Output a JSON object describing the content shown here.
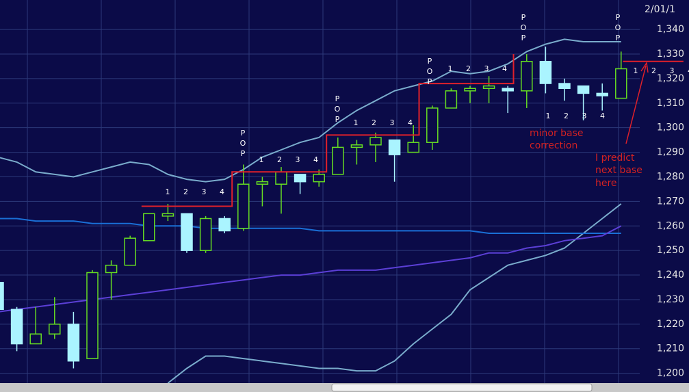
{
  "chart_data": {
    "type": "candlestick",
    "date_label": "2/01/1",
    "ylim": [
      1196,
      1352
    ],
    "yticks": [
      {
        "value": 1200,
        "label": "1,200"
      },
      {
        "value": 1210,
        "label": "1,210"
      },
      {
        "value": 1220,
        "label": "1,220"
      },
      {
        "value": 1230,
        "label": "1,230"
      },
      {
        "value": 1240,
        "label": "1,240"
      },
      {
        "value": 1250,
        "label": "1,250"
      },
      {
        "value": 1260,
        "label": "1,260"
      },
      {
        "value": 1270,
        "label": "1,270"
      },
      {
        "value": 1280,
        "label": "1,280"
      },
      {
        "value": 1290,
        "label": "1,290"
      },
      {
        "value": 1300,
        "label": "1,300"
      },
      {
        "value": 1310,
        "label": "1,310"
      },
      {
        "value": 1320,
        "label": "1,320"
      },
      {
        "value": 1330,
        "label": "1,330"
      },
      {
        "value": 1340,
        "label": "1,340"
      }
    ],
    "grid": true,
    "up_color": "#66dd22",
    "down_color": "#aaf4ff",
    "open": [
      1237,
      1226,
      1212,
      1216,
      1220,
      1206,
      1241,
      1244,
      1254,
      1264,
      1265,
      1250,
      1263,
      1259,
      1277,
      1277,
      1281,
      1278,
      1281,
      1292,
      1293,
      1295,
      1290,
      1294,
      1308,
      1315,
      1316,
      1316,
      1315,
      1327,
      1318,
      1317,
      1314,
      1312
    ],
    "high": [
      1238,
      1227,
      1227,
      1231,
      1225,
      1242,
      1246,
      1256,
      1265,
      1269,
      1265,
      1264,
      1264,
      1285,
      1280,
      1284,
      1281,
      1283,
      1296,
      1295,
      1298,
      1295,
      1301,
      1309,
      1316,
      1317,
      1321,
      1317,
      1330,
      1333,
      1320,
      1317,
      1318,
      1331
    ],
    "low": [
      1225,
      1209,
      1212,
      1214,
      1202,
      1206,
      1230,
      1244,
      1254,
      1262,
      1249,
      1249,
      1257,
      1258,
      1268,
      1265,
      1273,
      1276,
      1281,
      1285,
      1286,
      1278,
      1290,
      1291,
      1308,
      1310,
      1310,
      1306,
      1308,
      1314,
      1311,
      1303,
      1307,
      1312
    ],
    "close": [
      1226,
      1212,
      1216,
      1220,
      1205,
      1241,
      1244,
      1255,
      1265,
      1265,
      1250,
      1263,
      1258,
      1277,
      1278,
      1282,
      1278,
      1281,
      1292,
      1293,
      1296,
      1289,
      1294,
      1308,
      1315,
      1316,
      1317,
      1315,
      1327,
      1318,
      1316,
      1314,
      1313,
      1324
    ],
    "lines": [
      {
        "color": "#7aaccc",
        "values": [
          1288,
          1286,
          1282,
          1281,
          1280,
          1282,
          1284,
          1286,
          1285,
          1281,
          1279,
          1278,
          1279,
          1283,
          1288,
          1291,
          1294,
          1296,
          1302,
          1307,
          1311,
          1315,
          1317,
          1319,
          1323,
          1322,
          1323,
          1326,
          1331,
          1334,
          1336,
          1335,
          1335,
          1335
        ]
      },
      {
        "color": "#7aaccc",
        "values": [
          null,
          null,
          null,
          null,
          null,
          null,
          null,
          null,
          null,
          1196,
          1202,
          1207,
          1207,
          1206,
          1205,
          1204,
          1203,
          1202,
          1202,
          1201,
          1201,
          1205,
          1212,
          1218,
          1224,
          1234,
          1239,
          1244,
          1246,
          1248,
          1251,
          1257,
          1263,
          1269
        ]
      },
      {
        "color": "#1a6fd6",
        "values": [
          1263,
          1263,
          1262,
          1262,
          1262,
          1261,
          1261,
          1261,
          1260,
          1260,
          1260,
          1259,
          1259,
          1259,
          1259,
          1259,
          1259,
          1258,
          1258,
          1258,
          1258,
          1258,
          1258,
          1258,
          1258,
          1258,
          1257,
          1257,
          1257,
          1257,
          1257,
          1257,
          1257,
          1257
        ]
      },
      {
        "color": "#5b3fd6",
        "values": [
          1225,
          1226,
          1227,
          1228,
          1229,
          1230,
          1231,
          1232,
          1233,
          1234,
          1235,
          1236,
          1237,
          1238,
          1239,
          1240,
          1240,
          1241,
          1242,
          1242,
          1242,
          1243,
          1244,
          1245,
          1246,
          1247,
          1249,
          1249,
          1251,
          1252,
          1254,
          1255,
          1256,
          1260
        ]
      },
      {
        "color": "#e0202a",
        "x": [
          7.6,
          12.4,
          12.4,
          17.4,
          17.4,
          22.3,
          22.3,
          27.3,
          27.3
        ],
        "values": [
          1268,
          1268,
          1282,
          1282,
          1297,
          1297,
          1318,
          1318,
          1330
        ]
      },
      {
        "color": "#e0202a",
        "x": [
          33.1,
          36.3
        ],
        "values": [
          1327,
          1327
        ]
      }
    ],
    "count_labels": [
      "1",
      "2",
      "3",
      "4"
    ],
    "pop_letters": [
      "P",
      "O",
      "P"
    ],
    "annotations": [
      [
        "minor base",
        "correction"
      ],
      [
        "I predict",
        "next base",
        "here"
      ]
    ]
  }
}
